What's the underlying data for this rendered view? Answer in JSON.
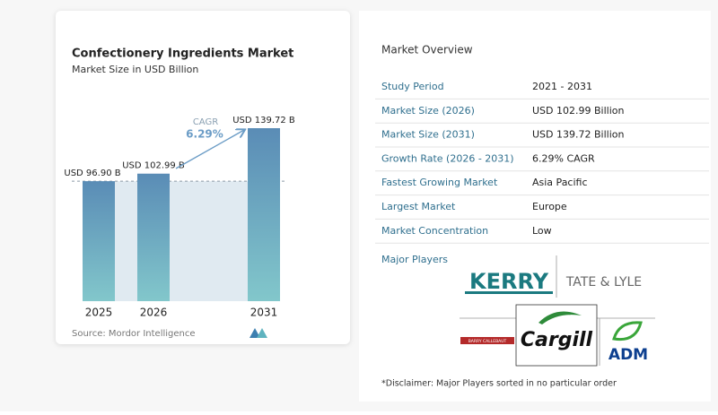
{
  "chart_data": {
    "type": "bar",
    "title": "Confectionery Ingredients Market",
    "subtitle": "Market Size in USD Billion",
    "categories": [
      "2025",
      "2026",
      "2031"
    ],
    "values": [
      96.9,
      102.99,
      139.72
    ],
    "value_labels": [
      "USD 96.90 B",
      "USD 102.99 B",
      "USD 139.72 B"
    ],
    "annotation": {
      "label": "CAGR",
      "value": "6.29%"
    },
    "source": "Source: Mordor Intelligence"
  },
  "overview": {
    "title": "Market Overview",
    "rows": [
      [
        "Study Period",
        "2021 - 2031"
      ],
      [
        "Market Size (2026)",
        "USD 102.99 Billion"
      ],
      [
        "Market Size (2031)",
        "USD 139.72 Billion"
      ],
      [
        "Growth Rate (2026 - 2031)",
        "6.29% CAGR"
      ],
      [
        "Fastest Growing Market",
        "Asia Pacific"
      ],
      [
        "Largest Market",
        "Europe"
      ],
      [
        "Market Concentration",
        "Low"
      ]
    ],
    "players_title": "Major Players",
    "players": [
      "KERRY",
      "TATE & LYLE",
      "BARRY CALLEBAUT",
      "Cargill",
      "ADM"
    ],
    "disclaimer": "*Disclaimer: Major Players sorted in no particular order"
  }
}
